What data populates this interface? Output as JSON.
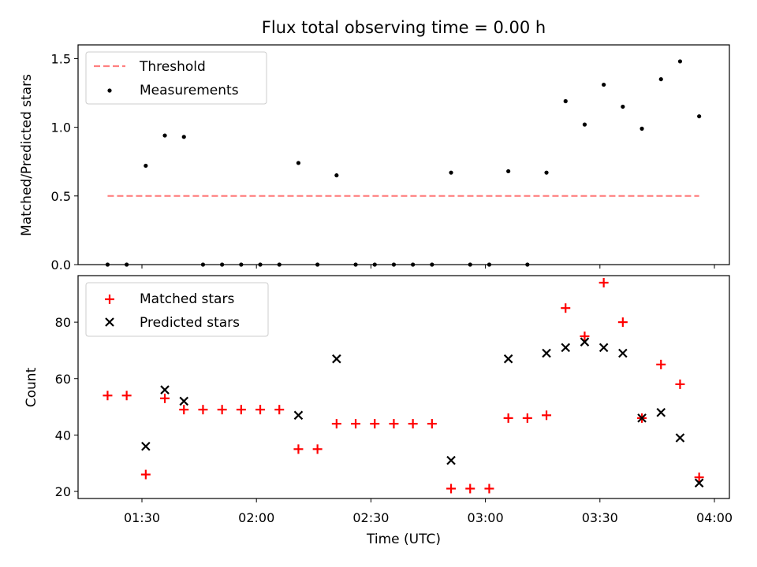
{
  "figure": {
    "title": "Flux total observing time = 0.00 h",
    "xlabel": "Time (UTC)",
    "xticks": [
      "01:30",
      "02:00",
      "02:30",
      "03:00",
      "03:30",
      "04:00"
    ]
  },
  "chart_data": [
    {
      "type": "scatter",
      "ylabel": "Matched/Predicted stars",
      "ylim": [
        0,
        1.6
      ],
      "yticks": [
        "0.0",
        "0.5",
        "1.0",
        "1.5"
      ],
      "legend": "top-left",
      "series": [
        {
          "name": "Threshold",
          "kind": "dashed-line",
          "color": "#ff8080",
          "x": [
            "01:21",
            "03:56"
          ],
          "y": [
            0.5,
            0.5
          ]
        },
        {
          "name": "Measurements",
          "kind": "dots",
          "color": "#000000",
          "x": [
            "01:21",
            "01:26",
            "01:31",
            "01:36",
            "01:41",
            "01:46",
            "01:51",
            "01:56",
            "02:01",
            "02:06",
            "02:11",
            "02:16",
            "02:21",
            "02:26",
            "02:31",
            "02:36",
            "02:41",
            "02:46",
            "02:51",
            "02:56",
            "03:01",
            "03:06",
            "03:11",
            "03:16",
            "03:21",
            "03:26",
            "03:31",
            "03:36",
            "03:41",
            "03:46",
            "03:51",
            "03:56"
          ],
          "y": [
            0,
            0,
            0.72,
            0.94,
            0.93,
            0,
            0,
            0,
            0,
            0,
            0.74,
            0,
            0.65,
            0,
            0,
            0,
            0,
            0,
            0.67,
            0,
            0,
            0.68,
            0,
            0.67,
            1.19,
            1.02,
            1.31,
            1.15,
            0.99,
            1.35,
            1.48,
            1.08
          ]
        }
      ]
    },
    {
      "type": "scatter",
      "ylabel": "Count",
      "ylim": [
        17.5,
        96.5
      ],
      "yticks": [
        "20",
        "40",
        "60",
        "80"
      ],
      "legend": "top-left",
      "series": [
        {
          "name": "Matched stars",
          "kind": "plus",
          "color": "#ff0000",
          "x": [
            "01:21",
            "01:26",
            "01:31",
            "01:36",
            "01:41",
            "01:46",
            "01:51",
            "01:56",
            "02:01",
            "02:06",
            "02:11",
            "02:16",
            "02:21",
            "02:26",
            "02:31",
            "02:36",
            "02:41",
            "02:46",
            "02:51",
            "02:56",
            "03:01",
            "03:06",
            "03:11",
            "03:16",
            "03:21",
            "03:26",
            "03:31",
            "03:36",
            "03:41",
            "03:46",
            "03:51",
            "03:56"
          ],
          "y": [
            54,
            54,
            26,
            53,
            49,
            49,
            49,
            49,
            49,
            49,
            35,
            35,
            44,
            44,
            44,
            44,
            44,
            44,
            21,
            21,
            21,
            46,
            46,
            47,
            85,
            75,
            94,
            80,
            46,
            65,
            58,
            25
          ]
        },
        {
          "name": "Predicted stars",
          "kind": "cross",
          "color": "#000000",
          "x": [
            "01:31",
            "01:36",
            "01:41",
            "02:11",
            "02:21",
            "02:51",
            "03:06",
            "03:16",
            "03:21",
            "03:26",
            "03:31",
            "03:36",
            "03:41",
            "03:46",
            "03:51",
            "03:56"
          ],
          "y": [
            36,
            56,
            52,
            47,
            67,
            31,
            67,
            69,
            71,
            73,
            71,
            69,
            46,
            48,
            39,
            23
          ]
        }
      ]
    }
  ]
}
